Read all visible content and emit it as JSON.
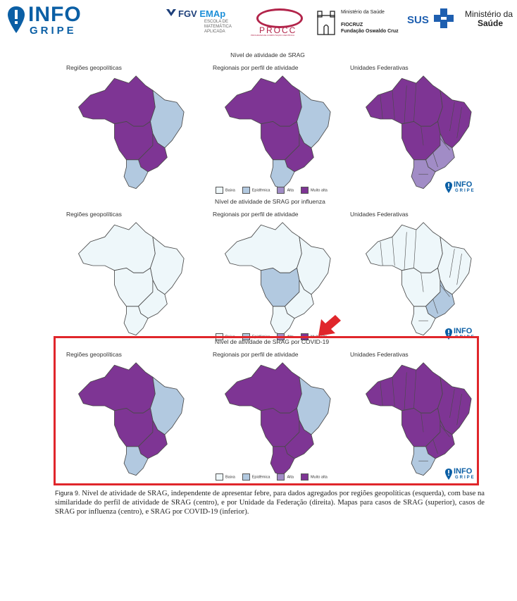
{
  "header": {
    "infogripe": {
      "line1": "INFO",
      "line2": "GRIPE"
    },
    "fgv": {
      "brand": "FGV",
      "brand_accent": "EMAp",
      "subtitle": "ESCOLA DE MATEMÁTICA APLICADA"
    },
    "procc": {
      "name": "PROCC",
      "subtitle": "PROGRAMA DE COMPUTAÇÃO CIENTÍFICA"
    },
    "fiocruz": {
      "line1": "Ministério da Saúde",
      "line2": "FIOCRUZ",
      "line3": "Fundação Oswaldo Cruz"
    },
    "sus": {
      "name": "SUS"
    },
    "ministerio": {
      "line1": "Ministério da",
      "line2": "Saúde"
    }
  },
  "colors": {
    "baixa": "#eef7fa",
    "epidemica": "#b2c9e0",
    "alta": "#a18cc6",
    "muito_alta": "#7e3594",
    "highlight": "#e0262b",
    "brand_blue": "#0b5fa5"
  },
  "column_titles": [
    "Regiões geopolíticas",
    "Regionais por perfil de atividade",
    "Unidades Federativas"
  ],
  "legend": [
    "Baixa",
    "Epidêmica",
    "Alta",
    "Muito alta"
  ],
  "watermark": {
    "line1": "INFO",
    "line2": "GRIPE"
  },
  "panels": [
    {
      "title": "Nível de atividade de SRAG",
      "maps": [
        {
          "regions": [
            "muito_alta",
            "epidemica",
            "muito_alta",
            "muito_alta",
            "epidemica"
          ]
        },
        {
          "regions": [
            "muito_alta",
            "epidemica",
            "muito_alta",
            "muito_alta",
            "epidemica"
          ]
        },
        {
          "regions": [
            "muito_alta",
            "muito_alta",
            "muito_alta",
            "alta",
            "alta"
          ]
        }
      ]
    },
    {
      "title": "Nível de atividade de SRAG por influenza",
      "maps": [
        {
          "regions": [
            "baixa",
            "baixa",
            "baixa",
            "baixa",
            "baixa"
          ]
        },
        {
          "regions": [
            "baixa",
            "baixa",
            "epidemica",
            "baixa",
            "baixa"
          ]
        },
        {
          "regions": [
            "baixa",
            "baixa",
            "baixa",
            "epidemica",
            "baixa"
          ]
        }
      ]
    },
    {
      "title": "Nível de atividade de SRAG por COVID-19",
      "maps": [
        {
          "regions": [
            "muito_alta",
            "epidemica",
            "muito_alta",
            "muito_alta",
            "epidemica"
          ]
        },
        {
          "regions": [
            "muito_alta",
            "epidemica",
            "muito_alta",
            "muito_alta",
            "muito_alta"
          ]
        },
        {
          "regions": [
            "muito_alta",
            "muito_alta",
            "muito_alta",
            "muito_alta",
            "epidemica"
          ]
        }
      ]
    }
  ],
  "caption": {
    "label": "Figura 9.",
    "text": "Nível de atividade de SRAG, independente de apresentar febre, para dados agregados por regiões geopolíticas (esquerda), com base na similaridade do perfil de atividade de SRAG (centro), e por Unidade da Federação (direita). Mapas para casos de SRAG (superior), casos de SRAG por influenza (centro), e SRAG por COVID-19 (inferior)."
  }
}
